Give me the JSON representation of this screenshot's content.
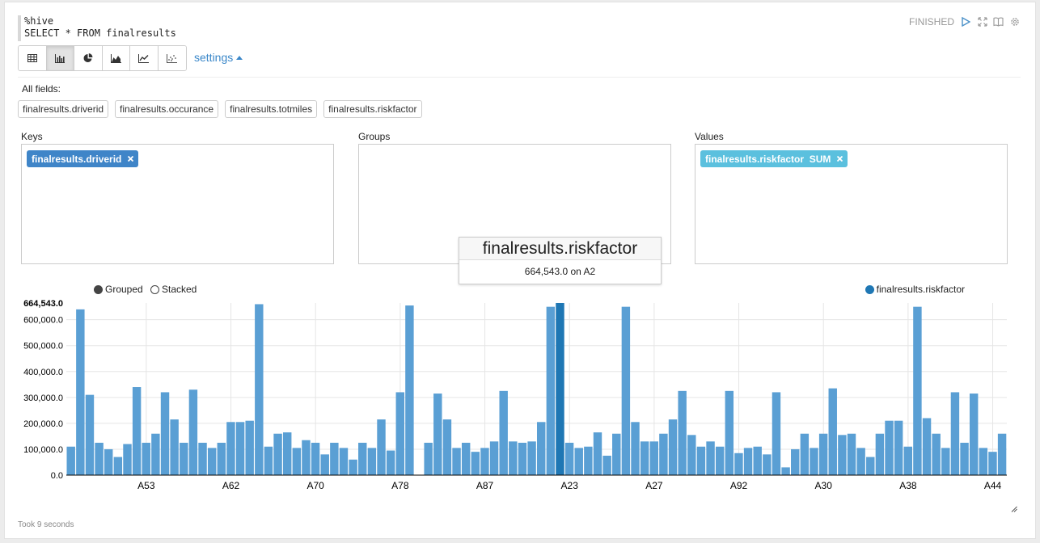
{
  "editor": {
    "lines": [
      "%hive",
      "SELECT * FROM finalresults"
    ]
  },
  "status": {
    "text": "FINISHED",
    "icons": [
      "play-icon",
      "expand-icon",
      "book-icon",
      "gear-icon"
    ]
  },
  "toolbar": {
    "buttons": [
      "table-icon",
      "bar-chart-icon",
      "pie-chart-icon",
      "area-chart-icon",
      "line-chart-icon",
      "scatter-chart-icon"
    ],
    "active": "bar-chart-icon",
    "settings_label": "settings"
  },
  "fields": {
    "label": "All fields:",
    "items": [
      "finalresults.driverid",
      "finalresults.occurance",
      "finalresults.totmiles",
      "finalresults.riskfactor"
    ]
  },
  "keys": {
    "label": "Keys",
    "tag": "finalresults.driverid"
  },
  "groups": {
    "label": "Groups"
  },
  "values": {
    "label": "Values",
    "tag": "finalresults.riskfactor  SUM"
  },
  "tooltip": {
    "title": "finalresults.riskfactor",
    "value": "664,543.0 on A2"
  },
  "mode": {
    "grouped": "Grouped",
    "stacked": "Stacked"
  },
  "legend": {
    "series": "finalresults.riskfactor"
  },
  "colors": {
    "bar": "#5a9fd4",
    "highlight": "#1f77b4",
    "link": "#3a87c9"
  },
  "footer": {
    "took": "Took 9 seconds"
  },
  "chart_data": {
    "type": "bar",
    "series": [
      {
        "name": "finalresults.riskfactor"
      }
    ],
    "ylim": [
      0,
      664543
    ],
    "y_ticks": [
      "0.0",
      "100,000.0",
      "200,000.0",
      "300,000.0",
      "400,000.0",
      "500,000.0",
      "600,000.0"
    ],
    "y_max_label": "664,543.0",
    "x_tick_labels": [
      "A53",
      "A62",
      "A70",
      "A78",
      "A87",
      "A23",
      "A27",
      "A92",
      "A30",
      "A38",
      "A44"
    ],
    "x_tick_bar_index": [
      8,
      17,
      26,
      35,
      44,
      53,
      62,
      71,
      80,
      89,
      98
    ],
    "highlight_index": 52,
    "values": [
      110000,
      640000,
      310000,
      125000,
      100000,
      70000,
      120000,
      340000,
      125000,
      160000,
      320000,
      215000,
      125000,
      330000,
      125000,
      105000,
      125000,
      205000,
      205000,
      210000,
      660000,
      110000,
      160000,
      165000,
      105000,
      135000,
      125000,
      80000,
      125000,
      105000,
      60000,
      125000,
      105000,
      215000,
      95000,
      320000,
      655000,
      0,
      125000,
      315000,
      215000,
      105000,
      125000,
      90000,
      105000,
      130000,
      325000,
      130000,
      125000,
      130000,
      205000,
      650000,
      664543,
      125000,
      105000,
      110000,
      165000,
      75000,
      160000,
      650000,
      205000,
      130000,
      130000,
      160000,
      215000,
      325000,
      155000,
      110000,
      130000,
      110000,
      325000,
      85000,
      105000,
      110000,
      80000,
      320000,
      30000,
      100000,
      160000,
      105000,
      160000,
      335000,
      155000,
      160000,
      105000,
      70000,
      160000,
      210000,
      210000,
      110000,
      650000,
      220000,
      160000,
      105000,
      320000,
      125000,
      315000,
      105000,
      90000,
      160000
    ]
  }
}
